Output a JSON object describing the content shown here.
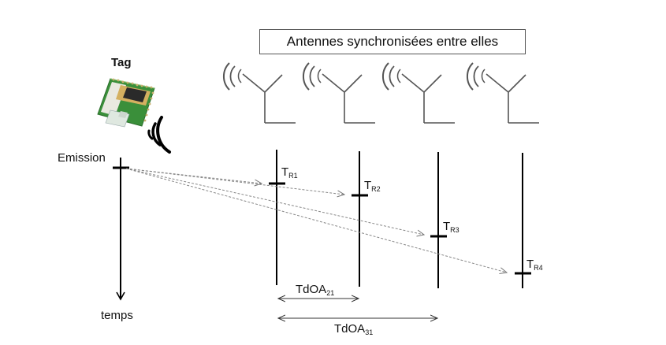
{
  "header": {
    "title": "Antennes synchronisées entre elles"
  },
  "tag": {
    "label": "Tag",
    "icon": "tag-module-icon"
  },
  "emission_label": "Emission",
  "time_axis_label": "temps",
  "antennas": [
    {
      "icon": "antenna-icon",
      "receive_label": "T",
      "receive_sub": "R1"
    },
    {
      "icon": "antenna-icon",
      "receive_label": "T",
      "receive_sub": "R2"
    },
    {
      "icon": "antenna-icon",
      "receive_label": "T",
      "receive_sub": "R3"
    },
    {
      "icon": "antenna-icon",
      "receive_label": "T",
      "receive_sub": "R4"
    }
  ],
  "tdoa": [
    {
      "label": "TdOA",
      "sub": "21"
    },
    {
      "label": "TdOA",
      "sub": "31"
    }
  ],
  "colors": {
    "line": "#000000",
    "dashed": "#888888",
    "pcb": "#3a8f3a",
    "chip": "#2a2a2a"
  }
}
